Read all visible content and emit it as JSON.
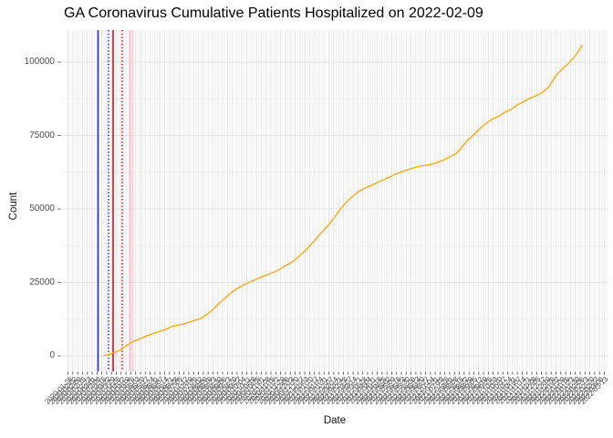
{
  "page": {
    "background": "#ffffff"
  },
  "chart_data": {
    "type": "line",
    "title": "GA Coronavirus Cumulative Patients Hospitalized on 2022-02-09",
    "xlabel": "Date",
    "ylabel": "Count",
    "legend": "none",
    "x_domain": [
      "2020-01-16",
      "2022-03-19"
    ],
    "y_domain": [
      -5280,
      110900
    ],
    "y_ticks": [
      0,
      25000,
      50000,
      75000,
      100000
    ],
    "y_tick_labels": [
      "0",
      "25000",
      "50000",
      "75000",
      "100000"
    ],
    "y_minor_ticks": [
      12500,
      37500,
      62500,
      87500
    ],
    "x_ticks_spec": {
      "start": "2020-01-26",
      "interval_days": 7,
      "count": 112,
      "label_format": "YYYY-MM-DD",
      "note": "weekly date labels rotated 45 degrees, heavily overlapping and illegible"
    },
    "grid": {
      "major_color": "#e3e3e3",
      "minor_color": "#efefef",
      "panel_background": "#ffffff",
      "tick_color": "#333333"
    },
    "series": [
      {
        "name": "Cumulative patients hospitalized",
        "color": "#FFA500",
        "dates": [
          "2020-03-17",
          "2020-03-26",
          "2020-04-03",
          "2020-04-12",
          "2020-04-20",
          "2020-04-30",
          "2020-05-09",
          "2020-05-18",
          "2020-05-30",
          "2020-06-14",
          "2020-06-27",
          "2020-07-10",
          "2020-07-23",
          "2020-08-05",
          "2020-08-15",
          "2020-08-23",
          "2020-09-01",
          "2020-09-10",
          "2020-09-18",
          "2020-09-27",
          "2020-10-07",
          "2020-10-15",
          "2020-10-24",
          "2020-11-02",
          "2020-11-10",
          "2020-11-19",
          "2020-11-28",
          "2020-12-06",
          "2020-12-16",
          "2020-12-25",
          "2021-01-02",
          "2021-01-11",
          "2021-01-20",
          "2021-01-28",
          "2021-02-07",
          "2021-02-16",
          "2021-02-24",
          "2021-03-05",
          "2021-03-14",
          "2021-03-22",
          "2021-03-31",
          "2021-04-10",
          "2021-04-18",
          "2021-04-27",
          "2021-05-06",
          "2021-05-14",
          "2021-05-23",
          "2021-06-02",
          "2021-06-10",
          "2021-06-19",
          "2021-06-28",
          "2021-07-06",
          "2021-07-15",
          "2021-07-24",
          "2021-08-01",
          "2021-08-11",
          "2021-08-20",
          "2021-08-28",
          "2021-09-06",
          "2021-09-15",
          "2021-09-23",
          "2021-10-03",
          "2021-10-12",
          "2021-10-20",
          "2021-10-29",
          "2021-11-07",
          "2021-11-15",
          "2021-11-24",
          "2021-12-04",
          "2021-12-12",
          "2021-12-21",
          "2021-12-27",
          "2022-01-03",
          "2022-01-12",
          "2022-01-20",
          "2022-01-29",
          "2022-02-05",
          "2022-02-09"
        ],
        "counts": [
          0,
          500,
          1200,
          2100,
          3600,
          4900,
          5800,
          6700,
          7700,
          8900,
          10200,
          10800,
          11700,
          12700,
          14200,
          15800,
          17900,
          19800,
          21400,
          22900,
          24200,
          25100,
          26000,
          27000,
          27600,
          28500,
          29500,
          30700,
          32000,
          33800,
          35400,
          37600,
          40000,
          42200,
          44700,
          47500,
          50000,
          52500,
          54400,
          55900,
          57100,
          58100,
          59000,
          59900,
          60900,
          61800,
          62700,
          63400,
          64000,
          64600,
          64900,
          65200,
          65900,
          66800,
          67700,
          69000,
          71500,
          73600,
          75500,
          77700,
          79200,
          80800,
          81700,
          83000,
          83900,
          85500,
          86400,
          87600,
          88600,
          89500,
          91100,
          93200,
          95700,
          97900,
          99500,
          101900,
          104100,
          105900
        ]
      }
    ],
    "event_vlines": [
      {
        "x_frac": 0.0675,
        "color": "#2222CC",
        "style": "solid"
      },
      {
        "x_frac": 0.0867,
        "color": "#2222CC",
        "style": "dotted"
      },
      {
        "x_frac": 0.095,
        "color": "#DD0000",
        "style": "solid"
      },
      {
        "x_frac": 0.1117,
        "color": "#DD0000",
        "style": "dotted"
      },
      {
        "x_frac": 0.1258,
        "color": "#FFB6C8",
        "style": "solid"
      },
      {
        "x_frac": 0.1308,
        "color": "#FFC6D2",
        "style": "solid"
      },
      {
        "x_frac": 0.145,
        "color": "#FFD2DC",
        "style": "dotted"
      }
    ]
  }
}
